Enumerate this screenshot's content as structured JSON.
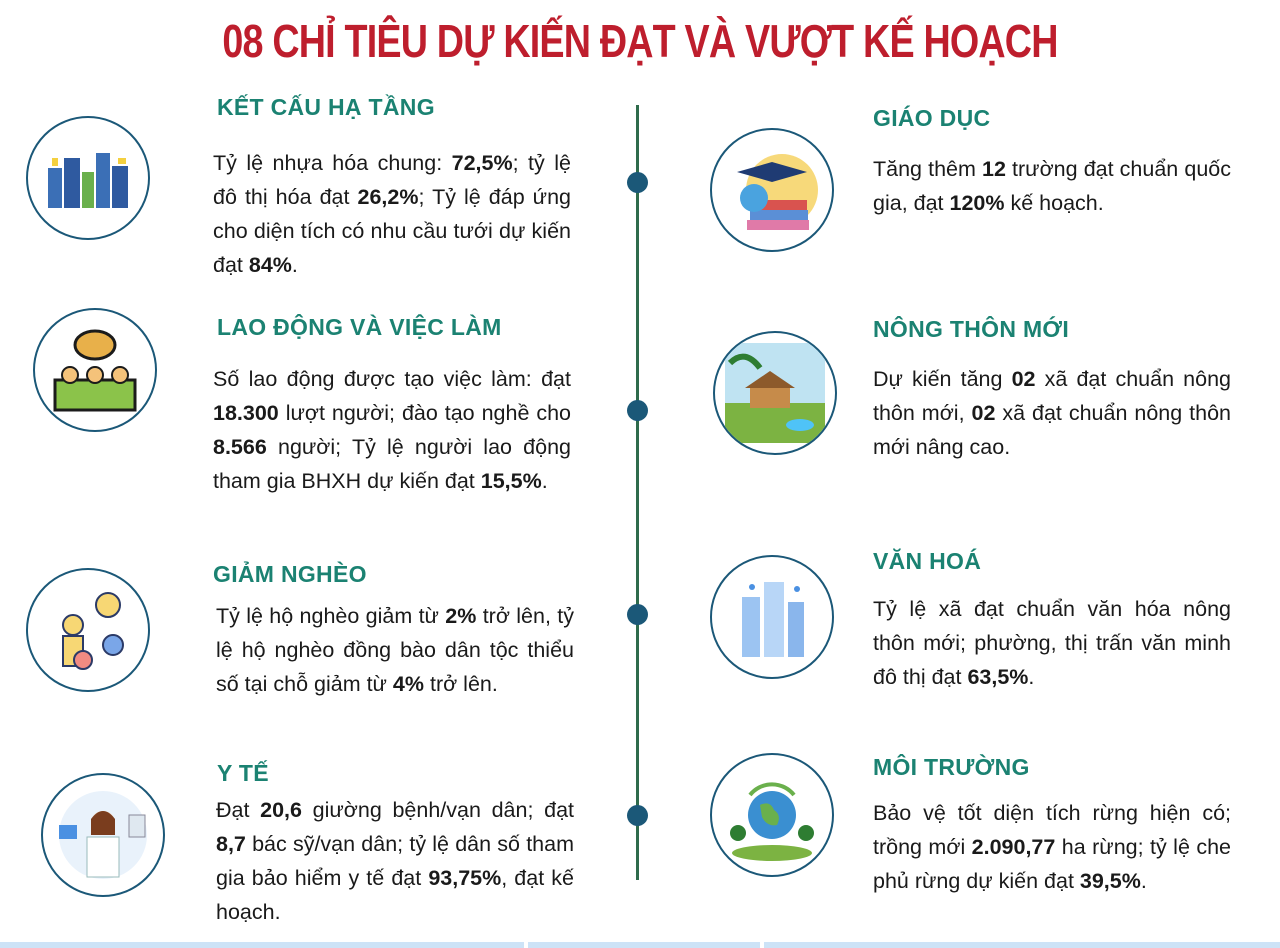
{
  "title": "08 CHỈ TIÊU DỰ KIẾN ĐẠT VÀ VƯỢT KẾ HOẠCH",
  "colors": {
    "title": "#be1e2d",
    "heading": "#1b8272",
    "timeline": "#2f6b4c",
    "dot": "#1b5878"
  },
  "sections": [
    {
      "title": "KẾT CẤU HẠ TẦNG",
      "icon": "city-buildings-icon",
      "body": [
        [
          "Tỷ lệ nhựa hóa chung: ",
          0
        ],
        [
          "72,5%",
          1
        ],
        [
          "; tỷ lệ đô thị hóa đạt ",
          0
        ],
        [
          "26,2%",
          1
        ],
        [
          "; Tỷ lệ đáp ứng cho diện tích có nhu cầu tưới dự kiến đạt ",
          0
        ],
        [
          "84%",
          1
        ],
        [
          ".",
          0
        ]
      ]
    },
    {
      "title": "GIÁO DỤC",
      "icon": "graduation-cap-books-icon",
      "body": [
        [
          "Tăng thêm ",
          0
        ],
        [
          "12",
          1
        ],
        [
          " trường đạt chuẩn quốc gia, đạt ",
          0
        ],
        [
          "120%",
          1
        ],
        [
          " kế hoạch.",
          0
        ]
      ]
    },
    {
      "title": "LAO ĐỘNG VÀ VIỆC LÀM",
      "icon": "workers-handshake-icon",
      "body": [
        [
          "Số lao động được tạo việc làm: đạt ",
          0
        ],
        [
          "18.300",
          1
        ],
        [
          " lượt người; đào tạo nghề cho ",
          0
        ],
        [
          "8.566",
          1
        ],
        [
          " người; Tỷ lệ người lao động tham gia BHXH dự kiến đạt ",
          0
        ],
        [
          "15,5%",
          1
        ],
        [
          ".",
          0
        ]
      ]
    },
    {
      "title": "NÔNG THÔN MỚI",
      "icon": "rural-village-icon",
      "body": [
        [
          "Dự kiến tăng ",
          0
        ],
        [
          "02",
          1
        ],
        [
          " xã đạt chuẩn nông thôn mới, ",
          0
        ],
        [
          "02",
          1
        ],
        [
          " xã đạt chuẩn nông thôn mới nâng cao.",
          0
        ]
      ]
    },
    {
      "title": "GIẢM NGHÈO",
      "icon": "poverty-support-icon",
      "body": [
        [
          "Tỷ lệ hộ nghèo giảm từ ",
          0
        ],
        [
          "2%",
          1
        ],
        [
          " trở lên, tỷ lệ hộ nghèo đồng bào dân tộc thiểu số tại chỗ giảm từ ",
          0
        ],
        [
          "4%",
          1
        ],
        [
          " trở lên.",
          0
        ]
      ]
    },
    {
      "title": "VĂN HOÁ",
      "icon": "smart-city-icon",
      "body": [
        [
          "Tỷ lệ xã đạt chuẩn văn hóa nông thôn mới; phường, thị trấn văn minh đô thị đạt ",
          0
        ],
        [
          "63,5%",
          1
        ],
        [
          ".",
          0
        ]
      ]
    },
    {
      "title": "Y TẾ",
      "icon": "doctor-health-icon",
      "body": [
        [
          "Đạt ",
          0
        ],
        [
          "20,6",
          1
        ],
        [
          " giường bệnh/vạn dân; đạt ",
          0
        ],
        [
          "8,7",
          1
        ],
        [
          " bác sỹ/vạn dân; tỷ lệ dân số tham gia bảo hiểm y tế đạt ",
          0
        ],
        [
          "93,75%",
          1
        ],
        [
          ", đạt kế hoạch.",
          0
        ]
      ]
    },
    {
      "title": "MÔI TRƯỜNG",
      "icon": "earth-environment-icon",
      "body": [
        [
          "Bảo vệ tốt diện tích rừng hiện có; trồng mới ",
          0
        ],
        [
          "2.090,77",
          1
        ],
        [
          " ha rừng;  tỷ lệ che phủ rừng dự kiến đạt ",
          0
        ],
        [
          "39,5%",
          1
        ],
        [
          ".",
          0
        ]
      ]
    }
  ]
}
